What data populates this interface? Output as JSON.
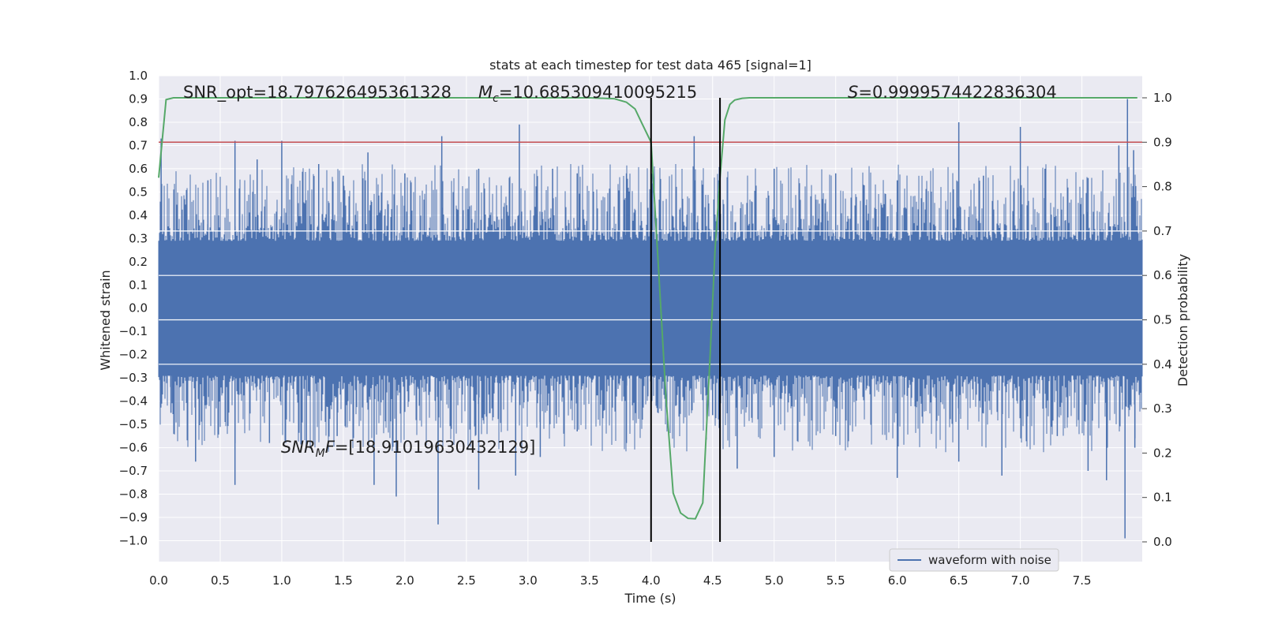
{
  "chart_data": {
    "type": "line",
    "title": "stats at each timestep for test data 465 [signal=1]",
    "xlabel": "Time (s)",
    "ylabel_left": "Whitened strain",
    "ylabel_right": "Detection probability",
    "xlim": [
      0.0,
      7.99
    ],
    "ylim_left": [
      -1.09,
      1.0
    ],
    "ylim_right": [
      0.0,
      1.0
    ],
    "grid": true,
    "x_ticks": [
      "0.0",
      "0.5",
      "1.0",
      "1.5",
      "2.0",
      "2.5",
      "3.0",
      "3.5",
      "4.0",
      "4.5",
      "5.0",
      "5.5",
      "6.0",
      "6.5",
      "7.0",
      "7.5"
    ],
    "y_left_ticks": [
      "1.0",
      "0.9",
      "0.8",
      "0.7",
      "0.6",
      "0.5",
      "0.4",
      "0.3",
      "0.2",
      "0.1",
      "0.0",
      "−0.1",
      "−0.2",
      "−0.3",
      "−0.4",
      "−0.5",
      "−0.6",
      "−0.7",
      "−0.8",
      "−0.9",
      "−1.0"
    ],
    "y_right_ticks": [
      "1.0",
      "0.9",
      "0.8",
      "0.7",
      "0.6",
      "0.5",
      "0.4",
      "0.3",
      "0.2",
      "0.1",
      "0.0"
    ],
    "annotations": {
      "snr_opt": "SNR_opt=18.797626495361328",
      "mc": "=10.685309410095215",
      "s": "=0.9999574422836304",
      "snr_mf_sub": "M",
      "snr_mf_suffix": "=[18.910196304321​29]"
    },
    "legend": {
      "label": "waveform with noise",
      "location": "lower-right"
    },
    "threshold_line": {
      "y_right": 0.9,
      "color": "#c44e52"
    },
    "vertical_lines": [
      4.0,
      4.56
    ],
    "series": [
      {
        "name": "Detection probability",
        "axis": "right",
        "color": "#55a868",
        "x": [
          0.0,
          0.06,
          0.12,
          0.2,
          0.5,
          1.0,
          2.0,
          3.0,
          3.5,
          3.7,
          3.8,
          3.87,
          3.93,
          4.0,
          4.06,
          4.12,
          4.18,
          4.24,
          4.3,
          4.36,
          4.42,
          4.48,
          4.52,
          4.56,
          4.6,
          4.64,
          4.68,
          4.74,
          4.8,
          5.0,
          6.0,
          7.0,
          7.95
        ],
        "y": [
          0.82,
          0.996,
          1.0,
          1.0,
          1.0,
          1.0,
          1.0,
          1.0,
          1.0,
          0.998,
          0.99,
          0.975,
          0.94,
          0.9,
          0.62,
          0.33,
          0.11,
          0.065,
          0.053,
          0.052,
          0.088,
          0.42,
          0.66,
          0.82,
          0.95,
          0.985,
          0.995,
          0.999,
          1.0,
          1.0,
          1.0,
          1.0,
          1.0
        ]
      },
      {
        "name": "waveform with noise",
        "axis": "left",
        "color": "#4c72b0",
        "core_envelope": [
          -0.25,
          0.25
        ],
        "peaks_positive": [
          [
            0.02,
            0.73
          ],
          [
            0.4,
            0.55
          ],
          [
            0.62,
            0.72
          ],
          [
            0.8,
            0.64
          ],
          [
            1.0,
            0.72
          ],
          [
            1.3,
            0.62
          ],
          [
            1.5,
            0.57
          ],
          [
            1.7,
            0.67
          ],
          [
            2.0,
            0.58
          ],
          [
            2.3,
            0.74
          ],
          [
            2.6,
            0.6
          ],
          [
            2.93,
            0.79
          ],
          [
            3.2,
            0.6
          ],
          [
            3.4,
            0.58
          ],
          [
            3.8,
            0.58
          ],
          [
            4.0,
            0.46
          ],
          [
            4.35,
            0.74
          ],
          [
            4.55,
            0.55
          ],
          [
            5.0,
            0.6
          ],
          [
            5.5,
            0.58
          ],
          [
            6.0,
            0.55
          ],
          [
            6.5,
            0.8
          ],
          [
            6.7,
            0.57
          ],
          [
            7.0,
            0.78
          ],
          [
            7.2,
            0.6
          ],
          [
            7.55,
            0.56
          ],
          [
            7.8,
            0.7
          ],
          [
            7.87,
            0.9
          ],
          [
            7.92,
            0.68
          ]
        ],
        "peaks_negative": [
          [
            0.1,
            -0.45
          ],
          [
            0.3,
            -0.66
          ],
          [
            0.62,
            -0.76
          ],
          [
            0.9,
            -0.58
          ],
          [
            1.2,
            -0.6
          ],
          [
            1.45,
            -0.55
          ],
          [
            1.75,
            -0.76
          ],
          [
            1.93,
            -0.81
          ],
          [
            2.27,
            -0.93
          ],
          [
            2.6,
            -0.78
          ],
          [
            2.9,
            -0.72
          ],
          [
            3.1,
            -0.64
          ],
          [
            3.4,
            -0.53
          ],
          [
            3.8,
            -0.58
          ],
          [
            4.0,
            -0.87
          ],
          [
            4.2,
            -0.42
          ],
          [
            4.5,
            -0.46
          ],
          [
            4.7,
            -0.69
          ],
          [
            5.0,
            -0.64
          ],
          [
            5.5,
            -0.55
          ],
          [
            6.0,
            -0.73
          ],
          [
            6.5,
            -0.66
          ],
          [
            6.85,
            -0.72
          ],
          [
            7.3,
            -0.55
          ],
          [
            7.55,
            -0.7
          ],
          [
            7.7,
            -0.74
          ],
          [
            7.85,
            -0.99
          ],
          [
            7.93,
            -0.6
          ]
        ]
      }
    ]
  }
}
